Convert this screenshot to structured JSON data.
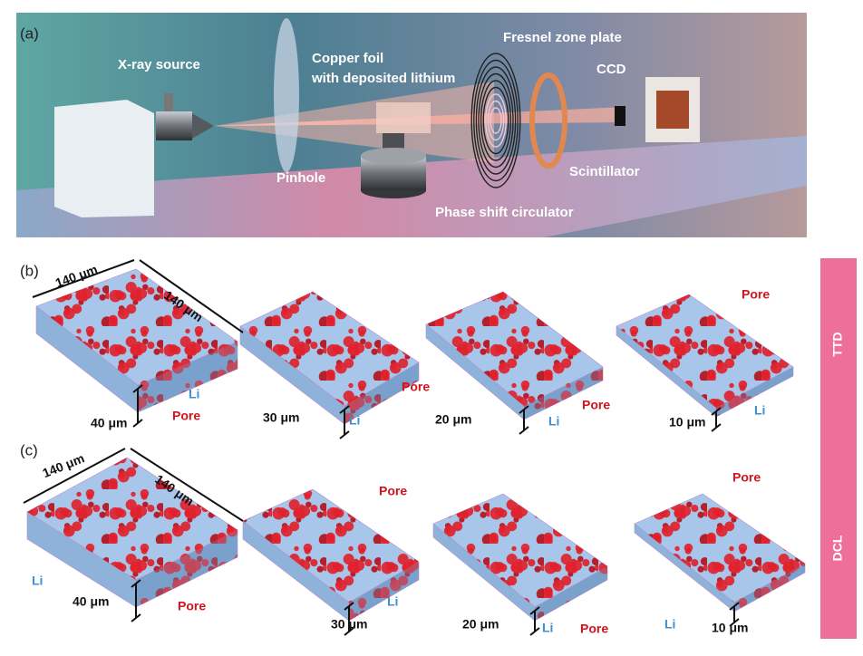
{
  "panel_a": {
    "label": "(a)",
    "components": [
      "X-ray source",
      "Pinhole",
      "Copper foil",
      "with deposited lithium",
      "Fresnel zone plate",
      "CCD",
      "Scintillator",
      "Phase shift circulator"
    ]
  },
  "panel_b": {
    "label": "(b)",
    "side_label": "TTD",
    "dimension_labels": [
      "140 μm",
      "140 μm"
    ],
    "samples": [
      {
        "thickness": "40 μm",
        "pore": "Pore",
        "li": "Li"
      },
      {
        "thickness": "30 μm",
        "pore": "Pore",
        "li": "Li"
      },
      {
        "thickness": "20 μm",
        "pore": "Pore",
        "li": "Li"
      },
      {
        "thickness": "10 μm",
        "pore": "Pore",
        "li": "Li"
      }
    ]
  },
  "panel_c": {
    "label": "(c)",
    "side_label": "DCL",
    "dimension_labels": [
      "140 μm",
      "140 μm"
    ],
    "samples": [
      {
        "thickness": "40 μm",
        "pore": "Pore",
        "li": "Li"
      },
      {
        "thickness": "30 μm",
        "pore": "Pore",
        "li": "Li"
      },
      {
        "thickness": "20 μm",
        "pore": "Pore",
        "li": "Li"
      },
      {
        "thickness": "10 μm",
        "pore": "Pore",
        "li": "Li"
      }
    ]
  }
}
